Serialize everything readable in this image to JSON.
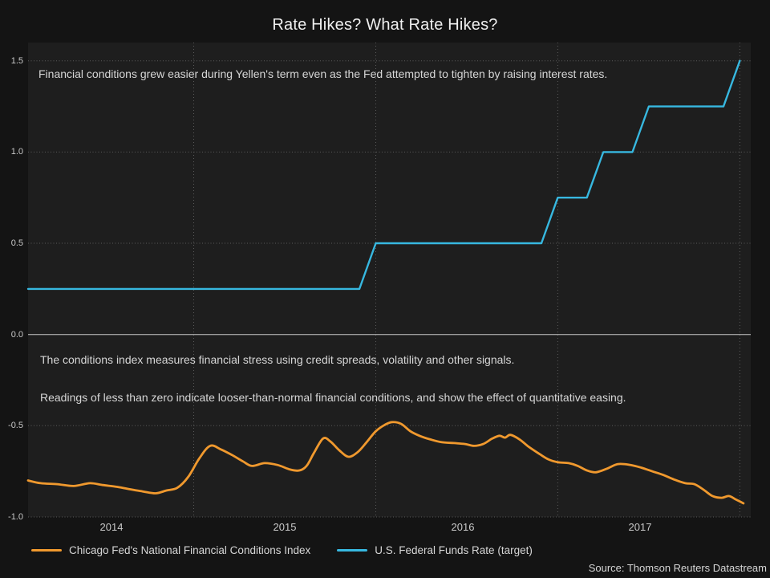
{
  "chart_data": {
    "type": "line",
    "title": "Rate Hikes? What Rate Hikes?",
    "source": "Source: Thomson Reuters Datastream",
    "annotations": [
      "Financial conditions grew easier during Yellen's term even as the Fed attempted to tighten by raising interest rates.",
      "The conditions index measures financial stress using credit spreads, volatility and other signals.",
      "Readings of less than zero indicate looser-than-normal financial conditions, and show the effect of quantitative easing."
    ],
    "x_domain": [
      2014.09,
      2018.06
    ],
    "y_domain": [
      -1.0,
      1.6
    ],
    "grid": "dotted",
    "legend_position": "bottom",
    "colors": {
      "page_bg": "#141414",
      "plot_bg": "#1e1e1e",
      "gridline": "#5a5a5a",
      "zero_line": "#c6c6c6",
      "text": "#d6d6d6"
    },
    "y_ticks": [
      {
        "label": "1.5",
        "value": 1.5
      },
      {
        "label": "1.0",
        "value": 1.0
      },
      {
        "label": "0.5",
        "value": 0.5
      },
      {
        "label": "0.0",
        "value": 0.0
      },
      {
        "label": "-0.5",
        "value": -0.5
      },
      {
        "label": "-1.0",
        "value": -1.0
      }
    ],
    "x_ticks": [
      {
        "label": "2014",
        "t": 2014.55
      },
      {
        "label": "2015",
        "t": 2015.5
      },
      {
        "label": "2016",
        "t": 2016.48
      },
      {
        "label": "2017",
        "t": 2017.45
      }
    ],
    "x_gridlines": [
      2015,
      2016,
      2017,
      2018
    ],
    "series": [
      {
        "name": "Chicago Fed's National Financial Conditions Index",
        "color": "#f0992e",
        "smooth": true,
        "points": [
          [
            2014.09,
            -0.8
          ],
          [
            2014.16,
            -0.815
          ],
          [
            2014.25,
            -0.82
          ],
          [
            2014.34,
            -0.83
          ],
          [
            2014.43,
            -0.815
          ],
          [
            2014.5,
            -0.825
          ],
          [
            2014.58,
            -0.835
          ],
          [
            2014.66,
            -0.85
          ],
          [
            2014.72,
            -0.86
          ],
          [
            2014.79,
            -0.87
          ],
          [
            2014.85,
            -0.855
          ],
          [
            2014.91,
            -0.84
          ],
          [
            2014.97,
            -0.78
          ],
          [
            2015.03,
            -0.68
          ],
          [
            2015.09,
            -0.61
          ],
          [
            2015.15,
            -0.63
          ],
          [
            2015.21,
            -0.66
          ],
          [
            2015.27,
            -0.695
          ],
          [
            2015.32,
            -0.72
          ],
          [
            2015.39,
            -0.705
          ],
          [
            2015.46,
            -0.715
          ],
          [
            2015.53,
            -0.74
          ],
          [
            2015.58,
            -0.745
          ],
          [
            2015.62,
            -0.72
          ],
          [
            2015.66,
            -0.65
          ],
          [
            2015.71,
            -0.57
          ],
          [
            2015.75,
            -0.585
          ],
          [
            2015.8,
            -0.635
          ],
          [
            2015.85,
            -0.67
          ],
          [
            2015.9,
            -0.645
          ],
          [
            2015.95,
            -0.59
          ],
          [
            2016.0,
            -0.53
          ],
          [
            2016.05,
            -0.495
          ],
          [
            2016.09,
            -0.48
          ],
          [
            2016.14,
            -0.49
          ],
          [
            2016.19,
            -0.53
          ],
          [
            2016.24,
            -0.555
          ],
          [
            2016.3,
            -0.575
          ],
          [
            2016.36,
            -0.59
          ],
          [
            2016.43,
            -0.595
          ],
          [
            2016.49,
            -0.6
          ],
          [
            2016.54,
            -0.61
          ],
          [
            2016.59,
            -0.6
          ],
          [
            2016.64,
            -0.57
          ],
          [
            2016.68,
            -0.555
          ],
          [
            2016.71,
            -0.565
          ],
          [
            2016.74,
            -0.55
          ],
          [
            2016.79,
            -0.575
          ],
          [
            2016.84,
            -0.615
          ],
          [
            2016.9,
            -0.655
          ],
          [
            2016.95,
            -0.685
          ],
          [
            2017.0,
            -0.7
          ],
          [
            2017.06,
            -0.705
          ],
          [
            2017.11,
            -0.72
          ],
          [
            2017.16,
            -0.745
          ],
          [
            2017.21,
            -0.755
          ],
          [
            2017.27,
            -0.735
          ],
          [
            2017.33,
            -0.71
          ],
          [
            2017.4,
            -0.715
          ],
          [
            2017.46,
            -0.73
          ],
          [
            2017.52,
            -0.75
          ],
          [
            2017.58,
            -0.77
          ],
          [
            2017.64,
            -0.795
          ],
          [
            2017.7,
            -0.815
          ],
          [
            2017.75,
            -0.82
          ],
          [
            2017.8,
            -0.85
          ],
          [
            2017.85,
            -0.885
          ],
          [
            2017.9,
            -0.895
          ],
          [
            2017.94,
            -0.885
          ],
          [
            2017.98,
            -0.905
          ],
          [
            2018.02,
            -0.925
          ]
        ]
      },
      {
        "name": "U.S. Federal Funds Rate (target)",
        "color": "#37b8e0",
        "smooth": false,
        "points": [
          [
            2014.09,
            0.25
          ],
          [
            2015.91,
            0.25
          ],
          [
            2016.0,
            0.5
          ],
          [
            2016.91,
            0.5
          ],
          [
            2017.0,
            0.75
          ],
          [
            2017.16,
            0.75
          ],
          [
            2017.25,
            1.0
          ],
          [
            2017.41,
            1.0
          ],
          [
            2017.5,
            1.25
          ],
          [
            2017.91,
            1.25
          ],
          [
            2018.0,
            1.5
          ]
        ]
      }
    ]
  }
}
